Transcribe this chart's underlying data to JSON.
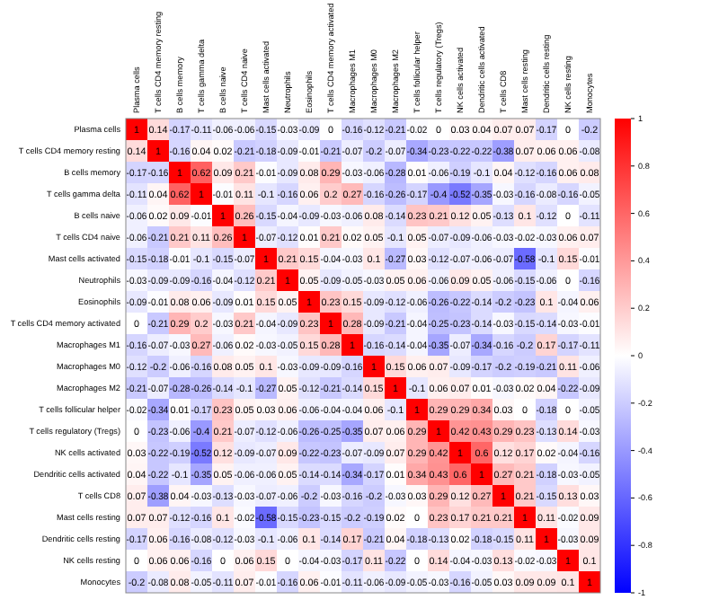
{
  "chart_data": {
    "type": "heatmap",
    "categories": [
      "Plasma cells",
      "T cells CD4 memory resting",
      "B cells memory",
      "T cells gamma delta",
      "B cells naive",
      "T cells CD4 naive",
      "Mast cells activated",
      "Neutrophils",
      "Eosinophils",
      "T cells CD4 memory activated",
      "Macrophages M1",
      "Macrophages M0",
      "Macrophages M2",
      "T cells follicular helper",
      "T cells regulatory (Tregs)",
      "NK cells activated",
      "Dendritic cells activated",
      "T cells CD8",
      "Mast cells resting",
      "Dendritic cells resting",
      "NK cells resting",
      "Monocytes"
    ],
    "y_categories": [
      "Plasma cells",
      "T cells CD4 memory resting",
      "B cells memory",
      "T cells gamma delta",
      "B cells naive",
      "T cells CD4 naive",
      "Mast cells activated",
      "Neutrophils",
      "Eosinophils",
      "T cells CD4 memory activated",
      "Macrophages M1",
      "Macrophages M0",
      "Macrophages M2",
      "T cells follicular helper",
      "T cells regulatory (Tregs)",
      "NK cells activated",
      "Dendritic cells activated",
      "T cells CD8",
      "Mast cells resting",
      "Dendritic cells resting",
      "NK cells resting",
      "Monocytes"
    ],
    "cells": [
      [
        1,
        0.14,
        -0.17,
        -0.11,
        -0.06,
        -0.06,
        -0.15,
        -0.03,
        -0.09,
        0,
        -0.16,
        -0.12,
        -0.21,
        -0.02,
        0,
        0.03,
        0.04,
        0.07,
        0.07,
        -0.17,
        0,
        -0.2
      ],
      [
        0.14,
        1,
        -0.16,
        0.04,
        0.02,
        -0.21,
        -0.18,
        -0.09,
        -0.01,
        -0.21,
        -0.07,
        -0.2,
        -0.07,
        -0.34,
        -0.23,
        -0.22,
        -0.22,
        -0.38,
        0.07,
        0.06,
        0.06,
        -0.08
      ],
      [
        -0.17,
        -0.16,
        1,
        0.62,
        0.09,
        0.21,
        -0.01,
        -0.09,
        0.08,
        0.29,
        -0.03,
        -0.06,
        -0.28,
        0.01,
        -0.06,
        -0.19,
        -0.1,
        0.04,
        -0.12,
        -0.16,
        0.06,
        0.08
      ],
      [
        -0.11,
        0.04,
        0.62,
        1,
        -0.01,
        0.11,
        -0.1,
        -0.16,
        0.06,
        0.2,
        0.27,
        -0.16,
        -0.26,
        -0.17,
        -0.4,
        -0.52,
        -0.35,
        -0.03,
        -0.16,
        -0.08,
        -0.16,
        -0.05
      ],
      [
        -0.06,
        0.02,
        0.09,
        -0.01,
        1,
        0.26,
        -0.15,
        -0.04,
        -0.09,
        -0.03,
        -0.06,
        0.08,
        -0.14,
        0.23,
        0.21,
        0.12,
        0.05,
        -0.13,
        0.1,
        -0.12,
        0,
        -0.11
      ],
      [
        -0.06,
        -0.21,
        0.21,
        0.11,
        0.26,
        1,
        -0.07,
        -0.12,
        0.01,
        0.21,
        0.02,
        0.05,
        -0.1,
        0.05,
        -0.07,
        -0.09,
        -0.06,
        -0.03,
        -0.02,
        -0.03,
        0.06,
        0.07
      ],
      [
        -0.15,
        -0.18,
        -0.01,
        -0.1,
        -0.15,
        -0.07,
        1,
        0.21,
        0.15,
        -0.04,
        -0.03,
        0.1,
        -0.27,
        0.03,
        -0.12,
        -0.07,
        -0.06,
        -0.07,
        -0.58,
        -0.1,
        0.15,
        -0.01
      ],
      [
        -0.03,
        -0.09,
        -0.09,
        -0.16,
        -0.04,
        -0.12,
        0.21,
        1,
        0.05,
        -0.09,
        -0.05,
        -0.03,
        0.05,
        0.06,
        -0.06,
        0.09,
        0.05,
        -0.06,
        -0.15,
        -0.06,
        0,
        -0.16
      ],
      [
        -0.09,
        -0.01,
        0.08,
        0.06,
        -0.09,
        0.01,
        0.15,
        0.05,
        1,
        0.23,
        0.15,
        -0.09,
        -0.12,
        -0.06,
        -0.26,
        -0.22,
        -0.14,
        -0.2,
        -0.23,
        0.1,
        -0.04,
        0.06
      ],
      [
        0,
        -0.21,
        0.29,
        0.2,
        -0.03,
        0.21,
        -0.04,
        -0.09,
        0.23,
        1,
        0.28,
        -0.09,
        -0.21,
        -0.04,
        -0.25,
        -0.23,
        -0.14,
        -0.03,
        -0.15,
        -0.14,
        -0.03,
        -0.01
      ],
      [
        -0.16,
        -0.07,
        -0.03,
        0.27,
        -0.06,
        0.02,
        -0.03,
        -0.05,
        0.15,
        0.28,
        1,
        -0.16,
        -0.14,
        -0.04,
        -0.35,
        -0.07,
        -0.34,
        -0.16,
        -0.2,
        0.17,
        -0.17,
        -0.11
      ],
      [
        -0.12,
        -0.2,
        -0.06,
        -0.16,
        0.08,
        0.05,
        0.1,
        -0.03,
        -0.09,
        -0.09,
        -0.16,
        1,
        0.15,
        0.06,
        0.07,
        -0.09,
        -0.17,
        -0.2,
        -0.19,
        -0.21,
        0.11,
        -0.06
      ],
      [
        -0.21,
        -0.07,
        -0.28,
        -0.26,
        -0.14,
        -0.1,
        -0.27,
        0.05,
        -0.12,
        -0.21,
        -0.14,
        0.15,
        1,
        -0.1,
        0.06,
        0.07,
        0.01,
        -0.03,
        0.02,
        0.04,
        -0.22,
        -0.09
      ],
      [
        -0.02,
        -0.34,
        0.01,
        -0.17,
        0.23,
        0.05,
        0.03,
        0.06,
        -0.06,
        -0.04,
        -0.04,
        0.06,
        -0.1,
        1,
        0.29,
        0.29,
        0.34,
        0.03,
        0,
        -0.18,
        0,
        -0.05
      ],
      [
        0,
        -0.23,
        -0.06,
        -0.4,
        0.21,
        -0.07,
        -0.12,
        -0.06,
        -0.26,
        -0.25,
        -0.35,
        0.07,
        0.06,
        0.29,
        1,
        0.42,
        0.43,
        0.29,
        0.23,
        -0.13,
        0.14,
        -0.03
      ],
      [
        0.03,
        -0.22,
        -0.19,
        -0.52,
        0.12,
        -0.09,
        -0.07,
        0.09,
        -0.22,
        -0.23,
        -0.07,
        -0.09,
        0.07,
        0.29,
        0.42,
        1,
        0.6,
        0.12,
        0.17,
        0.02,
        -0.04,
        -0.16
      ],
      [
        0.04,
        -0.22,
        -0.1,
        -0.35,
        0.05,
        -0.06,
        -0.06,
        0.05,
        -0.14,
        -0.14,
        -0.34,
        -0.17,
        0.01,
        0.34,
        0.43,
        0.6,
        1,
        0.27,
        0.21,
        -0.18,
        -0.03,
        -0.05
      ],
      [
        0.07,
        -0.38,
        0.04,
        -0.03,
        -0.13,
        -0.03,
        -0.07,
        -0.06,
        -0.2,
        -0.03,
        -0.16,
        -0.2,
        -0.03,
        0.03,
        0.29,
        0.12,
        0.27,
        1,
        0.21,
        -0.15,
        0.13,
        0.03
      ],
      [
        0.07,
        0.07,
        -0.12,
        -0.16,
        0.1,
        -0.02,
        -0.58,
        -0.15,
        -0.23,
        -0.15,
        -0.2,
        -0.19,
        0.02,
        0,
        0.23,
        0.17,
        0.21,
        0.21,
        1,
        0.11,
        -0.02,
        0.09
      ],
      [
        -0.17,
        0.06,
        -0.16,
        -0.08,
        -0.12,
        -0.03,
        -0.1,
        -0.06,
        0.1,
        -0.14,
        0.17,
        -0.21,
        0.04,
        -0.18,
        -0.13,
        0.02,
        -0.18,
        -0.15,
        0.11,
        1,
        -0.03,
        0.09
      ],
      [
        0,
        0.06,
        0.06,
        -0.16,
        0,
        0.06,
        0.15,
        0,
        -0.04,
        -0.03,
        -0.17,
        0.11,
        -0.22,
        0,
        0.14,
        -0.04,
        -0.03,
        0.13,
        -0.02,
        -0.03,
        1,
        0.1
      ],
      [
        -0.2,
        -0.08,
        0.08,
        -0.05,
        -0.11,
        0.07,
        -0.01,
        -0.16,
        0.06,
        -0.01,
        -0.11,
        -0.06,
        -0.09,
        -0.05,
        -0.03,
        -0.16,
        -0.05,
        0.03,
        0.09,
        0.09,
        0.1,
        1
      ]
    ],
    "clim": [
      -1,
      1
    ],
    "cticks": [
      -1,
      -0.8,
      -0.6,
      -0.4,
      -0.2,
      0,
      0.2,
      0.4,
      0.6,
      0.8,
      1
    ],
    "data_labels": true
  }
}
